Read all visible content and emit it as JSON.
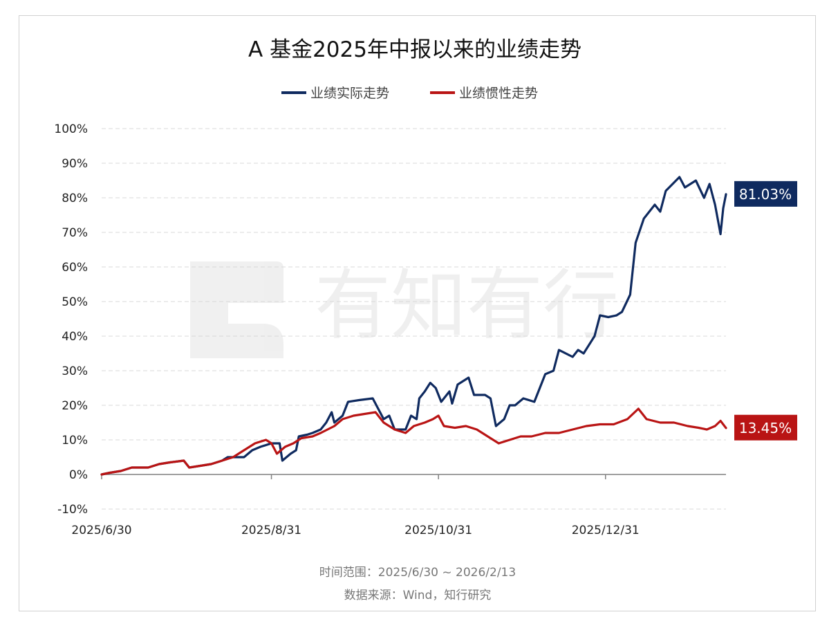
{
  "chart_data": {
    "type": "line",
    "title": "A 基金2025年中报以来的业绩走势",
    "x_start": "2025/6/30",
    "x_end": "2026/2/13",
    "xticks": [
      "2025/6/30",
      "2025/8/31",
      "2025/10/31",
      "2025/12/31"
    ],
    "yticks": [
      "100%",
      "90%",
      "80%",
      "70%",
      "60%",
      "50%",
      "40%",
      "30%",
      "20%",
      "10%",
      "0%",
      "-10%"
    ],
    "ylim": [
      -10,
      100
    ],
    "grid": true,
    "legend_position": "top-center",
    "series": [
      {
        "name": "业绩实际走势",
        "color": "#0f2a5f",
        "end_label": "81.03%",
        "values": [
          [
            "2025-06-30",
            0
          ],
          [
            "2025-07-03",
            0.5
          ],
          [
            "2025-07-07",
            1
          ],
          [
            "2025-07-11",
            2
          ],
          [
            "2025-07-17",
            2
          ],
          [
            "2025-07-21",
            3
          ],
          [
            "2025-07-25",
            3.5
          ],
          [
            "2025-07-30",
            4
          ],
          [
            "2025-08-01",
            2
          ],
          [
            "2025-08-05",
            2.5
          ],
          [
            "2025-08-09",
            3
          ],
          [
            "2025-08-13",
            4
          ],
          [
            "2025-08-15",
            5
          ],
          [
            "2025-08-19",
            5
          ],
          [
            "2025-08-21",
            5
          ],
          [
            "2025-08-24",
            7
          ],
          [
            "2025-08-27",
            8
          ],
          [
            "2025-08-31",
            9
          ],
          [
            "2025-09-03",
            9
          ],
          [
            "2025-09-04",
            4
          ],
          [
            "2025-09-07",
            6
          ],
          [
            "2025-09-09",
            7
          ],
          [
            "2025-09-10",
            11
          ],
          [
            "2025-09-13",
            11.5
          ],
          [
            "2025-09-15",
            12
          ],
          [
            "2025-09-18",
            13
          ],
          [
            "2025-09-20",
            15
          ],
          [
            "2025-09-22",
            18
          ],
          [
            "2025-09-23",
            15
          ],
          [
            "2025-09-26",
            17
          ],
          [
            "2025-09-28",
            21
          ],
          [
            "2025-10-02",
            21.5
          ],
          [
            "2025-10-07",
            22
          ],
          [
            "2025-10-09",
            19
          ],
          [
            "2025-10-11",
            16
          ],
          [
            "2025-10-13",
            17
          ],
          [
            "2025-10-15",
            13
          ],
          [
            "2025-10-19",
            13
          ],
          [
            "2025-10-21",
            17
          ],
          [
            "2025-10-23",
            16
          ],
          [
            "2025-10-24",
            22
          ],
          [
            "2025-10-26",
            24
          ],
          [
            "2025-10-28",
            26.5
          ],
          [
            "2025-10-30",
            25
          ],
          [
            "2025-11-01",
            21
          ],
          [
            "2025-11-04",
            24
          ],
          [
            "2025-11-05",
            20.5
          ],
          [
            "2025-11-07",
            26
          ],
          [
            "2025-11-11",
            28
          ],
          [
            "2025-11-13",
            23
          ],
          [
            "2025-11-17",
            23
          ],
          [
            "2025-11-19",
            22
          ],
          [
            "2025-11-21",
            14
          ],
          [
            "2025-11-24",
            16
          ],
          [
            "2025-11-26",
            20
          ],
          [
            "2025-11-28",
            20
          ],
          [
            "2025-12-01",
            22
          ],
          [
            "2025-12-05",
            21
          ],
          [
            "2025-12-09",
            29
          ],
          [
            "2025-12-12",
            30
          ],
          [
            "2025-12-14",
            36
          ],
          [
            "2025-12-19",
            34
          ],
          [
            "2025-12-21",
            36
          ],
          [
            "2025-12-23",
            35
          ],
          [
            "2025-12-27",
            40
          ],
          [
            "2025-12-29",
            46
          ],
          [
            "2026-01-01",
            45.5
          ],
          [
            "2026-01-04",
            46
          ],
          [
            "2026-01-06",
            47
          ],
          [
            "2026-01-09",
            52
          ],
          [
            "2026-01-11",
            67
          ],
          [
            "2026-01-14",
            74
          ],
          [
            "2026-01-18",
            78
          ],
          [
            "2026-01-20",
            76
          ],
          [
            "2026-01-22",
            82
          ],
          [
            "2026-01-27",
            86
          ],
          [
            "2026-01-29",
            83
          ],
          [
            "2026-01-31",
            84
          ],
          [
            "2026-02-02",
            85
          ],
          [
            "2026-02-05",
            80
          ],
          [
            "2026-02-07",
            84
          ],
          [
            "2026-02-09",
            78
          ],
          [
            "2026-02-11",
            69.5
          ],
          [
            "2026-02-12",
            77
          ],
          [
            "2026-02-13",
            81.03
          ]
        ]
      },
      {
        "name": "业绩惯性走势",
        "color": "#b91414",
        "end_label": "13.45%",
        "values": [
          [
            "2025-06-30",
            0
          ],
          [
            "2025-07-03",
            0.5
          ],
          [
            "2025-07-07",
            1
          ],
          [
            "2025-07-11",
            2
          ],
          [
            "2025-07-17",
            2
          ],
          [
            "2025-07-21",
            3
          ],
          [
            "2025-07-25",
            3.5
          ],
          [
            "2025-07-30",
            4
          ],
          [
            "2025-08-01",
            2
          ],
          [
            "2025-08-05",
            2.5
          ],
          [
            "2025-08-09",
            3
          ],
          [
            "2025-08-13",
            4
          ],
          [
            "2025-08-17",
            5
          ],
          [
            "2025-08-21",
            7
          ],
          [
            "2025-08-25",
            9
          ],
          [
            "2025-08-29",
            10
          ],
          [
            "2025-08-31",
            9
          ],
          [
            "2025-09-02",
            6
          ],
          [
            "2025-09-05",
            8
          ],
          [
            "2025-09-08",
            9
          ],
          [
            "2025-09-11",
            10.5
          ],
          [
            "2025-09-15",
            11
          ],
          [
            "2025-09-18",
            12
          ],
          [
            "2025-09-23",
            14
          ],
          [
            "2025-09-26",
            16
          ],
          [
            "2025-09-30",
            17
          ],
          [
            "2025-10-04",
            17.5
          ],
          [
            "2025-10-08",
            18
          ],
          [
            "2025-10-11",
            15
          ],
          [
            "2025-10-15",
            13
          ],
          [
            "2025-10-19",
            12
          ],
          [
            "2025-10-22",
            14
          ],
          [
            "2025-10-26",
            15
          ],
          [
            "2025-10-29",
            16
          ],
          [
            "2025-10-31",
            17
          ],
          [
            "2025-11-02",
            14
          ],
          [
            "2025-11-06",
            13.5
          ],
          [
            "2025-11-10",
            14
          ],
          [
            "2025-11-14",
            13
          ],
          [
            "2025-11-18",
            11
          ],
          [
            "2025-11-22",
            9
          ],
          [
            "2025-11-26",
            10
          ],
          [
            "2025-11-30",
            11
          ],
          [
            "2025-12-04",
            11
          ],
          [
            "2025-12-09",
            12
          ],
          [
            "2025-12-14",
            12
          ],
          [
            "2025-12-19",
            13
          ],
          [
            "2025-12-24",
            14
          ],
          [
            "2025-12-29",
            14.5
          ],
          [
            "2026-01-03",
            14.5
          ],
          [
            "2026-01-08",
            16
          ],
          [
            "2026-01-12",
            19
          ],
          [
            "2026-01-15",
            16
          ],
          [
            "2026-01-20",
            15
          ],
          [
            "2026-01-25",
            15
          ],
          [
            "2026-01-30",
            14
          ],
          [
            "2026-02-03",
            13.5
          ],
          [
            "2026-02-06",
            13
          ],
          [
            "2026-02-09",
            14
          ],
          [
            "2026-02-11",
            15.5
          ],
          [
            "2026-02-13",
            13.45
          ]
        ]
      }
    ],
    "footer": [
      "时间范围：2025/6/30 ~ 2026/2/13",
      "数据来源：Wind，知行研究"
    ]
  }
}
